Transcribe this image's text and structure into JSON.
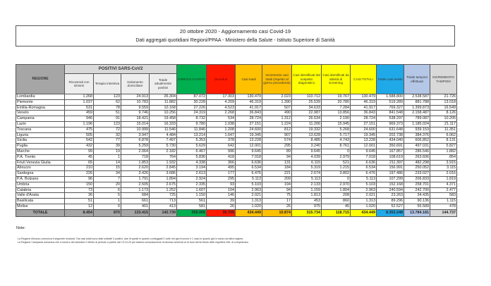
{
  "header": {
    "title": "20 ottobre 2020 - Aggiornamento casi Covid-19",
    "subtitle": "Dati aggregati quotidiani Regioni/PPAA - Ministero della Salute - Istituto Superiore di Sanità"
  },
  "table": {
    "region_header": "REGIONE",
    "group_header": "POSITIVI SARS-CoV2",
    "columns": [
      {
        "label": "Ricoverati con sintomi",
        "color": "#eeeeee",
        "text_color": "#333333"
      },
      {
        "label": "Terapia intensiva",
        "color": "#eeeeee",
        "text_color": "#333333"
      },
      {
        "label": "Isolamento domiciliare",
        "color": "#eeeeee",
        "text_color": "#333333"
      },
      {
        "label": "Totale attualmente positivi",
        "color": "#eeeeee",
        "text_color": "#333333"
      },
      {
        "label": "DIMESSI GUARITI",
        "color": "#00b050",
        "text_color": "#1a3d1a"
      },
      {
        "label": "Deceduti",
        "color": "#ff1a00",
        "text_color": "#7a0000"
      },
      {
        "label": "Casi totali",
        "color": "#ffc000",
        "text_color": "#333333"
      },
      {
        "label": "Incremento casi totali (rispetto al giorno precedente)",
        "color": "#ffc000",
        "text_color": "#333333"
      },
      {
        "label": "Casi identificati dal sospetto diagnostico",
        "color": "#ffff00",
        "text_color": "#333333"
      },
      {
        "label": "Casi identificati da attività di screening",
        "color": "#ffff00",
        "text_color": "#333333"
      },
      {
        "label": "CASI TOTALI",
        "color": "#ffff00",
        "text_color": "#333333"
      },
      {
        "label": "Totale casi testati",
        "color": "#1fa9e8",
        "text_color": "#333333"
      },
      {
        "label": "Totale tamponi effettuati",
        "color": "#b4c7e7",
        "text_color": "#333333"
      },
      {
        "label": "INCREMENTO TAMPONI",
        "color": "#d9d9d9",
        "text_color": "#333333"
      }
    ],
    "rows": [
      {
        "region": "Lombardia",
        "values": [
          "1.268",
          "123",
          "24.913",
          "26.304",
          "87.072",
          "17.303",
          "130.479",
          "2.023",
          "110.712",
          "19.767",
          "130.479",
          "1.588.800",
          "2.538.587",
          "21.726"
        ]
      },
      {
        "region": "Piemonte",
        "values": [
          "1.037",
          "62",
          "10.783",
          "11.882",
          "30.228",
          "4.209",
          "46.319",
          "1.390",
          "25.539",
          "20.780",
          "46.319",
          "519.289",
          "881.788",
          "13.018"
        ]
      },
      {
        "region": "Emilia-Romagna",
        "values": [
          "531",
          "78",
          "9.559",
          "10.168",
          "27.226",
          "4.523",
          "41.917",
          "507",
          "34.633",
          "7.284",
          "41.917",
          "769.327",
          "1.399.873",
          "16.549"
        ]
      },
      {
        "region": "Veneto",
        "values": [
          "459",
          "51",
          "9.746",
          "10.256",
          "24.319",
          "2.268",
          "36.843",
          "490",
          "22.987",
          "13.856",
          "36.843",
          "841.548",
          "2.158.487",
          "8.126"
        ]
      },
      {
        "region": "Campania",
        "values": [
          "946",
          "91",
          "18.421",
          "19.458",
          "8.732",
          "534",
          "28.724",
          "1.312",
          "26.534",
          "2.190",
          "28.724",
          "538.297",
          "789.087",
          "10.205"
        ]
      },
      {
        "region": "Lazio",
        "values": [
          "1.196",
          "123",
          "15.014",
          "16.333",
          "9.780",
          "1.038",
          "27.151",
          "1.224",
          "11.206",
          "15.945",
          "27.151",
          "969.373",
          "1.185.024",
          "21.117"
        ]
      },
      {
        "region": "Toscana",
        "values": [
          "475",
          "72",
          "10.999",
          "11.546",
          "11.846",
          "1.208",
          "24.600",
          "812",
          "19.332",
          "5.268",
          "24.600",
          "631.648",
          "939.153",
          "11.351"
        ]
      },
      {
        "region": "Liguria",
        "values": [
          "505",
          "32",
          "3.947",
          "4.484",
          "13.214",
          "1.647",
          "19.345",
          "907",
          "13.628",
          "5.717",
          "19.345",
          "202.738",
          "384.376",
          "6.062"
        ]
      },
      {
        "region": "Sicilia",
        "values": [
          "542",
          "77",
          "6.878",
          "7.497",
          "5.353",
          "378",
          "13.228",
          "574",
          "8.485",
          "4.743",
          "13.228",
          "434.040",
          "606.852",
          "8.131"
        ]
      },
      {
        "region": "Puglia",
        "values": [
          "432",
          "39",
          "5.259",
          "5.730",
          "5.629",
          "642",
          "12.001",
          "295",
          "3.240",
          "8.761",
          "12.001",
          "350.691",
          "497.031",
          "5.827"
        ]
      },
      {
        "region": "Marche",
        "values": [
          "99",
          "19",
          "2.064",
          "2.182",
          "6.467",
          "996",
          "9.645",
          "89",
          "9.645",
          "0",
          "9.645",
          "167.857",
          "286.546",
          "1.882"
        ]
      },
      {
        "region": "P.A. Trento",
        "values": [
          "45",
          "1",
          "718",
          "764",
          "5.836",
          "418",
          "7.018",
          "94",
          "4.039",
          "2.979",
          "7.018",
          "108.619",
          "263.606",
          "854"
        ]
      },
      {
        "region": "Friuli Venezia Giulia",
        "values": [
          "65",
          "14",
          "1.853",
          "1.932",
          "4.338",
          "366",
          "6.636",
          "131",
          "6.115",
          "521",
          "6.636",
          "211.397",
          "482.298",
          "3.915"
        ]
      },
      {
        "region": "Abruzzo",
        "values": [
          "210",
          "15",
          "2.620",
          "2.845",
          "3.194",
          "495",
          "6.534",
          "184",
          "5.319",
          "1.215",
          "6.534",
          "156.991",
          "250.052",
          "3.115"
        ]
      },
      {
        "region": "Sardegna",
        "values": [
          "226",
          "34",
          "3.426",
          "3.686",
          "2.613",
          "177",
          "6.476",
          "221",
          "2.674",
          "3.802",
          "6.476",
          "197.486",
          "233.027",
          "2.016"
        ]
      },
      {
        "region": "P.A. Bolzano",
        "values": [
          "96",
          "7",
          "1.791",
          "1.894",
          "2.924",
          "295",
          "5.113",
          "209",
          "5.113",
          "0",
          "5.113",
          "107.299",
          "206.833",
          "1.819"
        ]
      },
      {
        "region": "Umbria",
        "values": [
          "150",
          "20",
          "2.505",
          "2.675",
          "2.335",
          "93",
          "5.103",
          "194",
          "2.133",
          "2.970",
          "5.103",
          "152.168",
          "258.701",
          "4.371"
        ]
      },
      {
        "region": "Calabria",
        "values": [
          "73",
          "6",
          "1.173",
          "1.252",
          "1.607",
          "104",
          "2.963",
          "94",
          "1.159",
          "1.804",
          "2.963",
          "240.594",
          "242.700",
          "2.477"
        ]
      },
      {
        "region": "Valle d'Aosta",
        "values": [
          "36",
          "5",
          "684",
          "725",
          "1.150",
          "146",
          "2.021",
          "75",
          "1.813",
          "208",
          "2.021",
          "23.263",
          "34.435",
          "583"
        ]
      },
      {
        "region": "Basilicata",
        "values": [
          "51",
          "1",
          "661",
          "713",
          "561",
          "39",
          "1.313",
          "17",
          "453",
          "860",
          "1.313",
          "89.296",
          "90.136",
          "1.115"
        ]
      },
      {
        "region": "Molise",
        "values": [
          "12",
          "0",
          "401",
          "413",
          "581",
          "26",
          "1.020",
          "26",
          "975",
          "45",
          "1.020",
          "52.527",
          "55.589",
          "478"
        ]
      }
    ],
    "total": {
      "label": "TOTALE",
      "values": [
        "8.454",
        "870",
        "133.415",
        "142.739",
        "255.005",
        "36.705",
        "434.449",
        "10.874",
        "315.734",
        "118.715",
        "434.449",
        "8.353.248",
        "13.784.181",
        "144.737"
      ]
    }
  },
  "notes": {
    "label": "Note:",
    "lines": [
      "La Regione Abruzzo comunica il seguente ricalcolo: Dai casi totali sono stati sottratti 3 positivi, due di questi in quanto conteggiati 2 volte nei giorni scorsi e 1 caso in quanto già in carico ad altra regione.",
      "La Regione Campania comunica che il numero dei deceduti è riferito al periodo a partire dal 13.10.20 per tardiva comunicazione di decessi avvenuti al di fuori del territorio delle rispettive ASL di competenza."
    ]
  }
}
